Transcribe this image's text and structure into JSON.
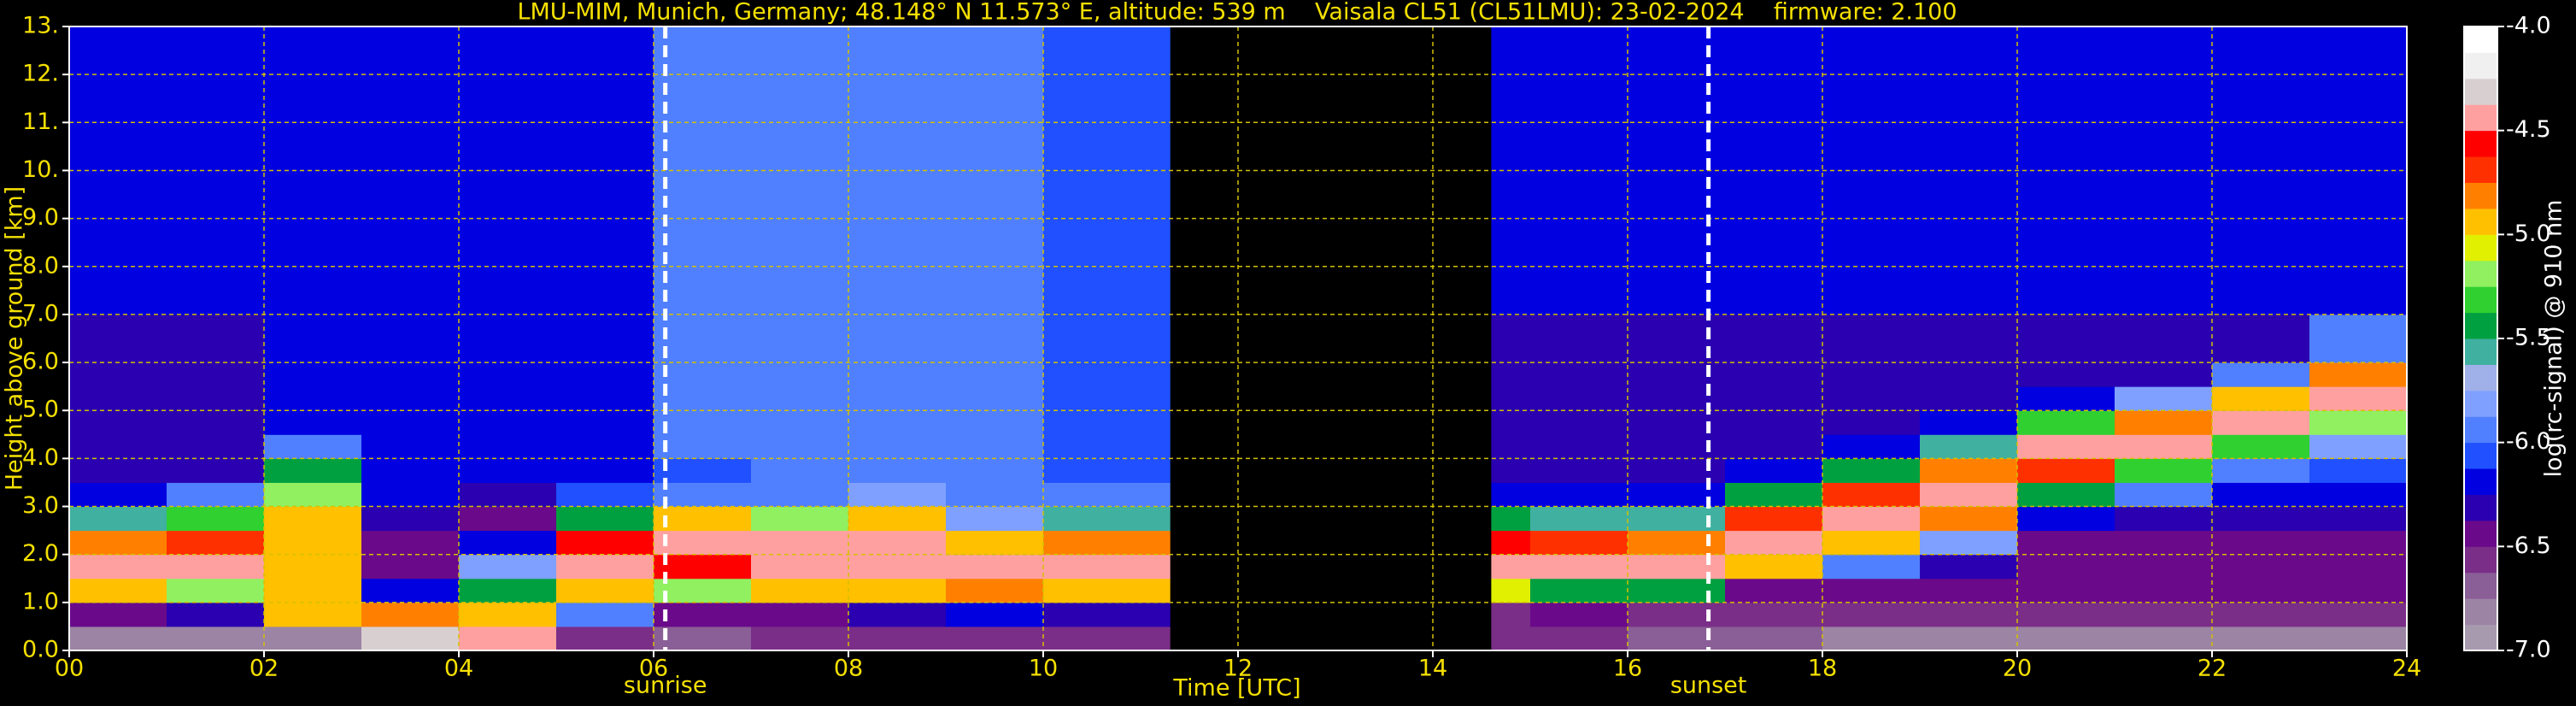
{
  "chart_data": {
    "type": "heatmap",
    "title": "LMU-MIM, Munich, Germany; 48.148° N 11.573° E, altitude: 539 m    Vaisala CL51 (CL51LMU): 23-02-2024    firmware: 2.100",
    "xlabel": "Time [UTC]",
    "ylabel": "Height above ground [km]",
    "colorbar_label": "log(rc-signal) @ 910 nm",
    "xlim": [
      0,
      24
    ],
    "xticks": [
      {
        "value": 0,
        "label": "00"
      },
      {
        "value": 2,
        "label": "02"
      },
      {
        "value": 4,
        "label": "04"
      },
      {
        "value": 6,
        "label": "06"
      },
      {
        "value": 8,
        "label": "08"
      },
      10,
      12,
      14,
      16,
      18,
      20,
      22,
      24
    ],
    "ylim": [
      0,
      13
    ],
    "yticks": [
      {
        "value": 0,
        "label": "0.0"
      },
      {
        "value": 1,
        "label": "1.0"
      },
      {
        "value": 2,
        "label": "2.0"
      },
      {
        "value": 3,
        "label": "3.0"
      },
      {
        "value": 4,
        "label": "4.0"
      },
      {
        "value": 5,
        "label": "5.0"
      },
      {
        "value": 6,
        "label": "6.0"
      },
      {
        "value": 7,
        "label": "7.0"
      },
      {
        "value": 8,
        "label": "8.0"
      },
      {
        "value": 9,
        "label": "9.0"
      },
      {
        "value": 10,
        "label": "10."
      },
      {
        "value": 11,
        "label": "11."
      },
      {
        "value": 12,
        "label": "12."
      },
      {
        "value": 13,
        "label": "13."
      }
    ],
    "grid": true,
    "clim": [
      -7,
      -4
    ],
    "cticks": [
      {
        "value": -7,
        "label": "-7.0"
      },
      {
        "value": -6.5,
        "label": "-6.5"
      },
      {
        "value": -6,
        "label": "-6.0"
      },
      {
        "value": -5.5,
        "label": "-5.5"
      },
      {
        "value": -5,
        "label": "-5.0"
      },
      {
        "value": -4.5,
        "label": "-4.5"
      },
      {
        "value": -4,
        "label": "-4.0"
      }
    ],
    "colormap": [
      "#a89aae",
      "#9c84a4",
      "#8a5e96",
      "#7a2e88",
      "#6a0a8a",
      "#2a00b0",
      "#0000e0",
      "#2050ff",
      "#5080ff",
      "#80a0ff",
      "#a0b0e8",
      "#40b0a0",
      "#00a040",
      "#30d030",
      "#90f060",
      "#e0f000",
      "#ffc000",
      "#ff8000",
      "#ff3000",
      "#ff0000",
      "#ffa0a0",
      "#d8d0d0",
      "#f0f0f0",
      "#ffffff"
    ],
    "annotations": [
      {
        "text": "sunrise",
        "x": 6.12
      },
      {
        "text": "sunset",
        "x": 16.83
      }
    ],
    "xbins": [
      0,
      1,
      2,
      3,
      4,
      5,
      6,
      7,
      8,
      9,
      10,
      11,
      11.3,
      14.6,
      15,
      16,
      17,
      18,
      19,
      20,
      21,
      22,
      23,
      24
    ],
    "ybins": [
      0,
      0.5,
      1,
      1.5,
      2,
      2.5,
      3,
      3.5,
      4,
      4.5,
      5,
      5.5,
      6,
      7,
      8,
      10,
      13
    ],
    "values": [
      [
        -6.8,
        -6.5,
        -5.0,
        -4.4,
        -4.8,
        -5.6,
        -6.2,
        -6.3,
        -6.3,
        -6.3,
        -6.3,
        -6.3,
        -6.3,
        -6.2,
        -6.2,
        -6.2
      ],
      [
        -6.8,
        -6.3,
        -5.2,
        -4.5,
        -4.7,
        -5.3,
        -6.0,
        -6.3,
        -6.3,
        -6.3,
        -6.3,
        -6.3,
        -6.3,
        -6.2,
        -6.2,
        -6.2
      ],
      [
        -6.8,
        -5.0,
        -4.9,
        -5.0,
        -5.0,
        -4.9,
        -5.2,
        -5.5,
        -5.9,
        -6.2,
        -6.2,
        -6.2,
        -6.2,
        -6.2,
        -6.2,
        -6.2
      ],
      [
        -4.3,
        -4.8,
        -6.2,
        -6.4,
        -6.4,
        -6.3,
        -6.2,
        -6.2,
        -6.2,
        -6.2,
        -6.2,
        -6.2,
        -6.2,
        -6.2,
        -6.2,
        -6.2
      ],
      [
        -4.4,
        -5.0,
        -5.4,
        -5.8,
        -6.2,
        -6.4,
        -6.3,
        -6.2,
        -6.2,
        -6.2,
        -6.2,
        -6.2,
        -6.2,
        -6.2,
        -6.2,
        -6.2
      ],
      [
        -6.6,
        -6.0,
        -4.9,
        -4.5,
        -4.6,
        -5.4,
        -6.1,
        -6.2,
        -6.2,
        -6.2,
        -6.2,
        -6.2,
        -6.2,
        -6.2,
        -6.2,
        -6.2
      ],
      [
        -6.7,
        -6.5,
        -5.2,
        -4.6,
        -4.4,
        -5.0,
        -5.9,
        -6.1,
        -6.0,
        -6.0,
        -6.0,
        -6.0,
        -6.0,
        -6.0,
        -6.0,
        -6.0
      ],
      [
        -6.6,
        -6.4,
        -5.0,
        -4.5,
        -4.5,
        -5.2,
        -5.9,
        -6.0,
        -5.9,
        -5.9,
        -5.9,
        -5.9,
        -5.9,
        -5.9,
        -5.9,
        -5.9
      ],
      [
        -6.6,
        -6.3,
        -4.9,
        -4.5,
        -4.5,
        -5.0,
        -5.8,
        -6.0,
        -5.9,
        -5.9,
        -5.9,
        -5.9,
        -5.9,
        -5.9,
        -5.9,
        -5.9
      ],
      [
        -6.6,
        -6.2,
        -4.8,
        -4.5,
        -5.0,
        -5.8,
        -6.0,
        -6.0,
        -6.0,
        -6.0,
        -6.0,
        -6.0,
        -6.0,
        -6.0,
        -6.0,
        -6.0
      ],
      [
        -6.6,
        -6.3,
        -5.0,
        -4.5,
        -4.8,
        -5.6,
        -6.0,
        -6.1,
        -6.1,
        -6.1,
        -6.1,
        -6.1,
        -6.1,
        -6.1,
        -6.1,
        -6.1
      ],
      [
        -6.6,
        -6.3,
        -5.0,
        -4.5,
        -4.8,
        -5.6,
        -6.0,
        -6.1,
        -6.1,
        -6.1,
        -6.1,
        -6.1,
        -6.1,
        -6.1,
        -6.1,
        -6.1
      ],
      [
        null,
        null,
        null,
        null,
        null,
        null,
        null,
        null,
        null,
        null,
        null,
        null,
        null,
        null,
        null,
        null
      ],
      [
        -6.6,
        -6.6,
        -5.1,
        -4.5,
        -4.6,
        -5.5,
        -6.2,
        -6.3,
        -6.3,
        -6.3,
        -6.3,
        -6.3,
        -6.3,
        -6.2,
        -6.2,
        -6.2
      ],
      [
        -6.6,
        -6.5,
        -5.5,
        -4.5,
        -4.7,
        -5.6,
        -6.2,
        -6.3,
        -6.3,
        -6.3,
        -6.3,
        -6.3,
        -6.3,
        -6.2,
        -6.2,
        -6.2
      ],
      [
        -6.7,
        -6.6,
        -5.4,
        -4.5,
        -4.8,
        -5.6,
        -6.2,
        -6.3,
        -6.3,
        -6.3,
        -6.3,
        -6.3,
        -6.3,
        -6.2,
        -6.2,
        -6.2
      ],
      [
        -6.7,
        -6.6,
        -6.5,
        -5.0,
        -4.5,
        -4.7,
        -5.5,
        -6.2,
        -6.3,
        -6.3,
        -6.3,
        -6.3,
        -6.3,
        -6.2,
        -6.2,
        -6.2
      ],
      [
        -6.8,
        -6.6,
        -6.5,
        -6.0,
        -5.0,
        -4.5,
        -4.7,
        -5.5,
        -6.2,
        -6.3,
        -6.3,
        -6.3,
        -6.3,
        -6.2,
        -6.2,
        -6.2
      ],
      [
        -6.8,
        -6.6,
        -6.5,
        -6.3,
        -5.8,
        -4.8,
        -4.5,
        -4.8,
        -5.6,
        -6.2,
        -6.3,
        -6.3,
        -6.3,
        -6.2,
        -6.2,
        -6.2
      ],
      [
        -6.8,
        -6.6,
        -6.5,
        -6.4,
        -6.4,
        -6.2,
        -5.5,
        -4.7,
        -4.5,
        -5.3,
        -6.2,
        -6.3,
        -6.3,
        -6.2,
        -6.2,
        -6.2
      ],
      [
        -6.8,
        -6.6,
        -6.5,
        -6.4,
        -6.4,
        -6.3,
        -6.0,
        -5.3,
        -4.5,
        -4.8,
        -5.8,
        -6.3,
        -6.3,
        -6.2,
        -6.2,
        -6.2
      ],
      [
        -6.8,
        -6.6,
        -6.5,
        -6.4,
        -6.4,
        -6.3,
        -6.2,
        -5.9,
        -5.3,
        -4.5,
        -4.9,
        -5.9,
        -6.3,
        -6.2,
        -6.2,
        -6.2
      ],
      [
        -6.8,
        -6.6,
        -6.5,
        -6.4,
        -6.4,
        -6.3,
        -6.2,
        -6.1,
        -5.8,
        -5.2,
        -4.5,
        -4.8,
        -6.0,
        -6.2,
        -6.2,
        -6.2
      ]
    ]
  }
}
